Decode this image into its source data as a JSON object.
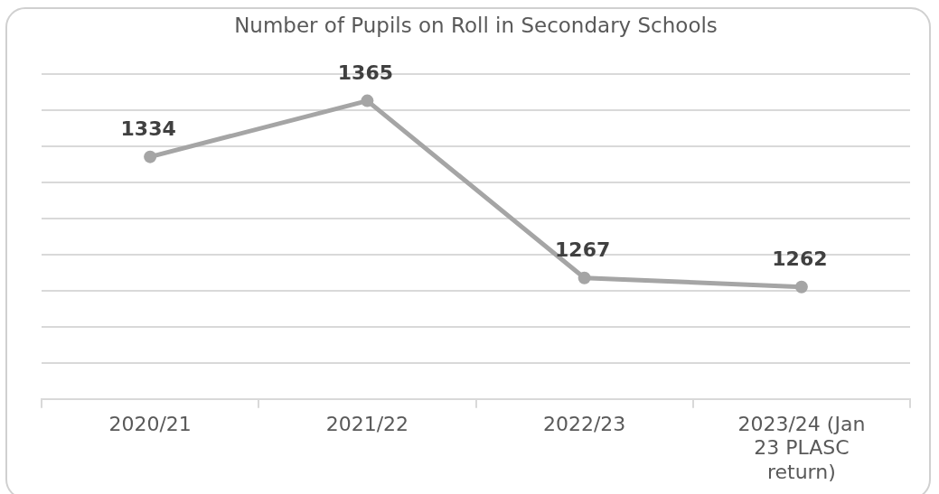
{
  "chart_data": {
    "type": "line",
    "title": "Number of Pupils on Roll in Secondary Schools",
    "categories": [
      "2020/21",
      "2021/22",
      "2022/23",
      "2023/24 (Jan 23 PLASC return)"
    ],
    "series": [
      {
        "color": "#a5a5a5",
        "values": [
          1334,
          1365,
          1267,
          1262
        ]
      }
    ],
    "ylim": [
      1200,
      1380
    ],
    "yticks": [
      {
        "value": 1200,
        "label": null
      },
      {
        "value": 1220,
        "label": null
      },
      {
        "value": 1240,
        "label": null
      },
      {
        "value": 1260,
        "label": null
      },
      {
        "value": 1280,
        "label": null
      },
      {
        "value": 1300,
        "label": null
      },
      {
        "value": 1320,
        "label": null
      },
      {
        "value": 1340,
        "label": null
      },
      {
        "value": 1360,
        "label": null
      },
      {
        "value": 1380,
        "label": null
      }
    ],
    "grid": "y",
    "tick_labels": "x",
    "marker": "circle",
    "line_style": "solid",
    "data_labels": true,
    "legend": false
  }
}
